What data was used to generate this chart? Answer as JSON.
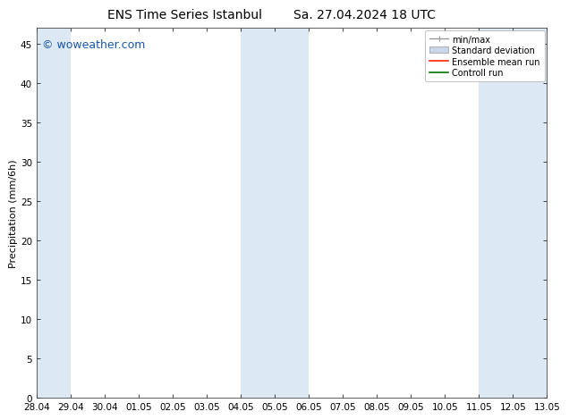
{
  "title_left": "ENS Time Series Istanbul",
  "title_right": "Sa. 27.04.2024 18 UTC",
  "ylabel": "Precipitation (mm/6h)",
  "ylim": [
    0,
    47
  ],
  "yticks": [
    0,
    5,
    10,
    15,
    20,
    25,
    30,
    35,
    40,
    45
  ],
  "xtick_labels": [
    "28.04",
    "29.04",
    "30.04",
    "01.05",
    "02.05",
    "03.05",
    "04.05",
    "05.05",
    "06.05",
    "07.05",
    "08.05",
    "09.05",
    "10.05",
    "11.05",
    "12.05",
    "13.05"
  ],
  "shaded_bands": [
    {
      "xmin": 0,
      "xmax": 1
    },
    {
      "xmin": 6,
      "xmax": 8
    },
    {
      "xmin": 13,
      "xmax": 15
    }
  ],
  "band_color": "#dce9f5",
  "background_color": "#ffffff",
  "watermark": "© woweather.com",
  "watermark_color": "#1a55aa",
  "legend_items": [
    {
      "label": "min/max"
    },
    {
      "label": "Standard deviation"
    },
    {
      "label": "Ensemble mean run"
    },
    {
      "label": "Controll run"
    }
  ],
  "minmax_color": "#999999",
  "std_color": "#c8d8e8",
  "ens_color": "#ff2200",
  "ctrl_color": "#007700",
  "title_fontsize": 10,
  "axis_fontsize": 8,
  "tick_fontsize": 7.5,
  "watermark_fontsize": 9,
  "legend_fontsize": 7
}
